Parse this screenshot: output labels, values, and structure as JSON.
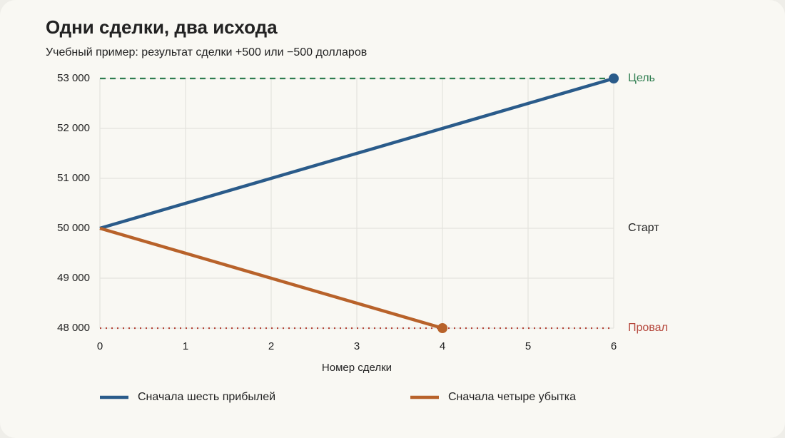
{
  "chart_data": {
    "type": "line",
    "title": "Одни сделки, два исхода",
    "subtitle": "Учебный пример: результат сделки +500 или −500 долларов",
    "x_label": "Номер сделки",
    "x": [
      0,
      1,
      2,
      3,
      4,
      5,
      6
    ],
    "xlim": [
      0,
      6
    ],
    "xticks": [
      0,
      1,
      2,
      3,
      4,
      5,
      6
    ],
    "ylim": [
      48000,
      53000
    ],
    "yticks": [
      {
        "value": 48000,
        "label": "48 000"
      },
      {
        "value": 49000,
        "label": "49 000"
      },
      {
        "value": 50000,
        "label": "50 000"
      },
      {
        "value": 51000,
        "label": "51 000"
      },
      {
        "value": 52000,
        "label": "52 000"
      },
      {
        "value": 53000,
        "label": "53 000"
      }
    ],
    "grid": true,
    "series": [
      {
        "name": "Сначала шесть прибылей",
        "color": "#2a5b8a",
        "values": [
          50000,
          50500,
          51000,
          51500,
          52000,
          52500,
          53000
        ]
      },
      {
        "name": "Сначала четыре убытка",
        "color": "#b8622a",
        "values": [
          50000,
          49500,
          49000,
          48500,
          48000,
          null,
          null
        ]
      }
    ],
    "reference_lines": [
      {
        "label": "Цель",
        "value": 53000,
        "color": "#2e7d4f",
        "style": "dashed"
      },
      {
        "label": "Старт",
        "value": 50000,
        "color": "#222222",
        "style": "none"
      },
      {
        "label": "Провал",
        "value": 48000,
        "color": "#b5463a",
        "style": "dotted"
      }
    ],
    "legend": "bottom"
  }
}
